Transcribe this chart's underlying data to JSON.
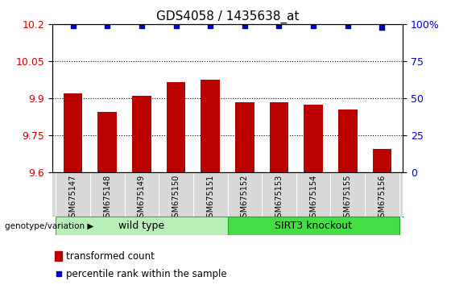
{
  "title": "GDS4058 / 1435638_at",
  "categories": [
    "GSM675147",
    "GSM675148",
    "GSM675149",
    "GSM675150",
    "GSM675151",
    "GSM675152",
    "GSM675153",
    "GSM675154",
    "GSM675155",
    "GSM675156"
  ],
  "bar_values": [
    9.92,
    9.845,
    9.91,
    9.965,
    9.975,
    9.885,
    9.885,
    9.875,
    9.855,
    9.695
  ],
  "percentile_values": [
    99,
    99,
    99,
    99,
    99,
    99,
    99,
    99,
    99,
    98
  ],
  "ylim": [
    9.6,
    10.2
  ],
  "ylim_right": [
    0,
    100
  ],
  "yticks_left": [
    9.6,
    9.75,
    9.9,
    10.05,
    10.2
  ],
  "ytick_labels_left": [
    "9.6",
    "9.75",
    "9.9",
    "10.05",
    "10.2"
  ],
  "yticks_right": [
    0,
    25,
    50,
    75,
    100
  ],
  "ytick_labels_right": [
    "0",
    "25",
    "50",
    "75",
    "100%"
  ],
  "bar_color": "#bb0000",
  "dot_color": "#0000bb",
  "grid_color": "#000000",
  "group1_label": "wild type",
  "group2_label": "SIRT3 knockout",
  "group1_color": "#b8f0b8",
  "group2_color": "#44dd44",
  "group1_indices": [
    0,
    1,
    2,
    3,
    4
  ],
  "group2_indices": [
    5,
    6,
    7,
    8,
    9
  ],
  "legend_bar_label": "transformed count",
  "legend_dot_label": "percentile rank within the sample",
  "genotype_label": "genotype/variation",
  "left_axis_color": "#cc0000",
  "right_axis_color": "#0000cc",
  "bar_width": 0.55,
  "title_fontsize": 11,
  "tick_fontsize": 9,
  "label_fontsize": 8,
  "legend_fontsize": 8.5,
  "dot_size": 18
}
